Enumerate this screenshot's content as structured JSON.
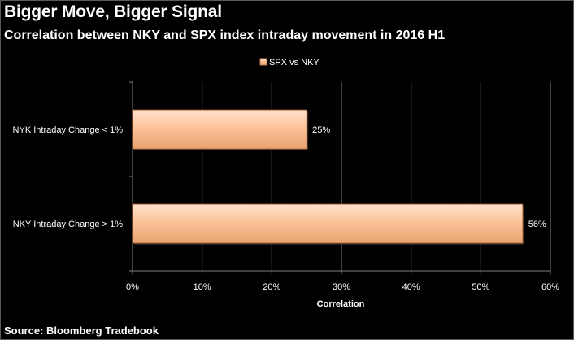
{
  "header": {
    "title": "Bigger Move, Bigger Signal",
    "subtitle": "Correlation between NKY and SPX index intraday movement in 2016 H1"
  },
  "footer": {
    "source": "Source: Bloomberg Tradebook"
  },
  "colors": {
    "background": "#000000",
    "bar_fill": "#fcc39a",
    "bar_edge": "#c8804f",
    "gridline": "#7f7f7f"
  },
  "chart_data": {
    "type": "bar",
    "orientation": "horizontal",
    "categories": [
      "NYK Intraday Change < 1%",
      "NKY Intraday Change > 1%"
    ],
    "series": [
      {
        "name": "SPX vs NKY",
        "values": [
          0.25,
          0.56
        ]
      }
    ],
    "data_labels": [
      "25%",
      "56%"
    ],
    "xlabel": "Correlation",
    "ylabel": "",
    "xlim": [
      0,
      0.6
    ],
    "x_ticks": [
      0,
      0.1,
      0.2,
      0.3,
      0.4,
      0.5,
      0.6
    ],
    "x_tick_labels": [
      "0%",
      "10%",
      "20%",
      "30%",
      "40%",
      "50%",
      "60%"
    ],
    "grid": true,
    "legend_position": "top"
  }
}
